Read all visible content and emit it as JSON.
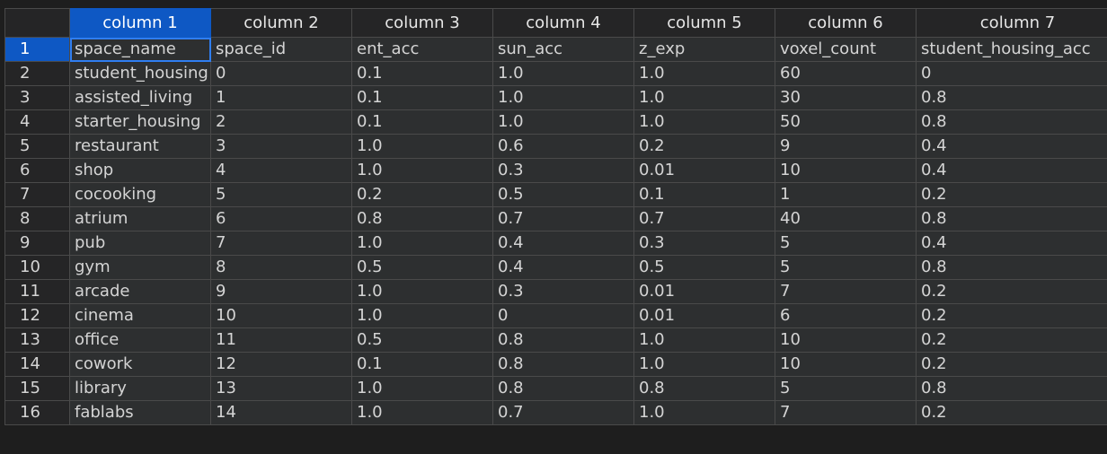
{
  "columns": [
    "column 1",
    "column 2",
    "column 3",
    "column 4",
    "column 5",
    "column 6",
    "column 7"
  ],
  "rows": [
    {
      "num": "1",
      "cells": [
        "space_name",
        "space_id",
        "ent_acc",
        "sun_acc",
        "z_exp",
        "voxel_count",
        "student_housing_acc"
      ]
    },
    {
      "num": "2",
      "cells": [
        "student_housing",
        "0",
        "0.1",
        "1.0",
        "1.0",
        "60",
        "0"
      ]
    },
    {
      "num": "3",
      "cells": [
        "assisted_living",
        "1",
        "0.1",
        "1.0",
        "1.0",
        "30",
        "0.8"
      ]
    },
    {
      "num": "4",
      "cells": [
        "starter_housing",
        "2",
        "0.1",
        "1.0",
        "1.0",
        "50",
        "0.8"
      ]
    },
    {
      "num": "5",
      "cells": [
        "restaurant",
        "3",
        "1.0",
        "0.6",
        "0.2",
        "9",
        "0.4"
      ]
    },
    {
      "num": "6",
      "cells": [
        "shop",
        "4",
        "1.0",
        "0.3",
        "0.01",
        "10",
        "0.4"
      ]
    },
    {
      "num": "7",
      "cells": [
        "cocooking",
        "5",
        "0.2",
        "0.5",
        "0.1",
        "1",
        "0.2"
      ]
    },
    {
      "num": "8",
      "cells": [
        "atrium",
        "6",
        "0.8",
        "0.7",
        "0.7",
        "40",
        "0.8"
      ]
    },
    {
      "num": "9",
      "cells": [
        "pub",
        "7",
        "1.0",
        "0.4",
        "0.3",
        "5",
        "0.4"
      ]
    },
    {
      "num": "10",
      "cells": [
        "gym",
        "8",
        "0.5",
        "0.4",
        "0.5",
        "5",
        "0.8"
      ]
    },
    {
      "num": "11",
      "cells": [
        "arcade",
        "9",
        "1.0",
        "0.3",
        "0.01",
        "7",
        "0.2"
      ]
    },
    {
      "num": "12",
      "cells": [
        "cinema",
        "10",
        "1.0",
        "0",
        "0.01",
        "6",
        "0.2"
      ]
    },
    {
      "num": "13",
      "cells": [
        "office",
        "11",
        "0.5",
        "0.8",
        "1.0",
        "10",
        "0.2"
      ]
    },
    {
      "num": "14",
      "cells": [
        "cowork",
        "12",
        "0.1",
        "0.8",
        "1.0",
        "10",
        "0.2"
      ]
    },
    {
      "num": "15",
      "cells": [
        "library",
        "13",
        "1.0",
        "0.8",
        "0.8",
        "5",
        "0.8"
      ]
    },
    {
      "num": "16",
      "cells": [
        "fablabs",
        "14",
        "1.0",
        "0.7",
        "1.0",
        "7",
        "0.2"
      ]
    }
  ],
  "selection": {
    "row": "1",
    "column": "column 1"
  },
  "colors": {
    "background": "#1e1e1e",
    "cell": "#2d2f30",
    "header": "#252526",
    "selected": "#0e58c4",
    "active_outline": "#2f7ef2",
    "grid_line": "#4a4a4a",
    "text": "#d4d4d4"
  }
}
